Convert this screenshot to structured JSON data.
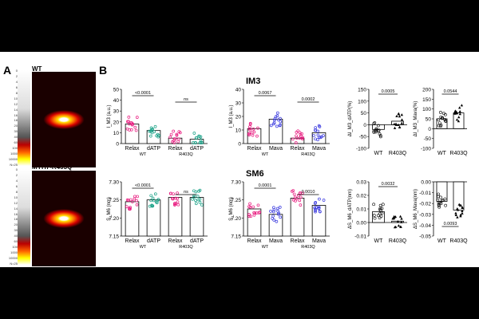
{
  "panel_a": {
    "label": "A",
    "image_top_label": "WT",
    "image_bottom_label": "MYH7-R403Q",
    "lut_ticks": [
      "0",
      "2",
      "4",
      "6",
      "8",
      "10",
      "12",
      "14",
      "16",
      "18",
      "20",
      "30",
      "40",
      "60",
      "100",
      "1000",
      "10000",
      "N=25"
    ]
  },
  "panel_b": {
    "label": "B",
    "row1_title": "IM3",
    "row2_title": "SM6"
  },
  "colors": {
    "wt_relax": "#e8177d",
    "dATP": "#16a085",
    "mava": "#3a3adf",
    "neutral": "#000000"
  },
  "chart_data": [
    {
      "id": "im3_datp",
      "type": "bar",
      "ylabel": "I_M3 (a.u.)",
      "ylim": [
        0,
        50
      ],
      "yticks": [
        0,
        10,
        20,
        30,
        40,
        50
      ],
      "categories": [
        "Relax",
        "dATP",
        "Relax",
        "dATP"
      ],
      "groups": [
        "WT",
        "R403Q"
      ],
      "values": [
        18,
        12,
        5,
        4
      ],
      "p_values": [
        "<0.0001",
        "ns"
      ]
    },
    {
      "id": "im3_mava",
      "type": "bar",
      "ylabel": "I_M3 (a.u.)",
      "ylim": [
        0,
        40
      ],
      "yticks": [
        0,
        10,
        20,
        30,
        40
      ],
      "categories": [
        "Relax",
        "Mava",
        "Relax",
        "Mava"
      ],
      "groups": [
        "WT",
        "R403Q"
      ],
      "values": [
        11,
        18,
        4,
        8
      ],
      "p_values": [
        "0.0067",
        "0.0002"
      ]
    },
    {
      "id": "im3_delta_datp",
      "type": "bar",
      "ylabel": "ΔI_M3_dATP(%)",
      "ylim": [
        -100,
        150
      ],
      "yticks": [
        -100,
        -50,
        0,
        50,
        100,
        150
      ],
      "categories": [
        "WT",
        "R403Q"
      ],
      "values": [
        -20,
        15
      ],
      "p_values": [
        "0.0005"
      ]
    },
    {
      "id": "im3_delta_mava",
      "type": "bar",
      "ylabel": "ΔI_M3_Mava(%)",
      "ylim": [
        -100,
        200
      ],
      "yticks": [
        -100,
        -50,
        0,
        50,
        100,
        150,
        200
      ],
      "categories": [
        "WT",
        "R403Q"
      ],
      "values": [
        50,
        80
      ],
      "p_values": [
        "0.0544"
      ]
    },
    {
      "id": "sm6_datp",
      "type": "bar",
      "ylabel": "S_M6 (nm)",
      "ylim": [
        7.15,
        7.3
      ],
      "yticks": [
        7.15,
        7.2,
        7.25,
        7.3
      ],
      "categories": [
        "Relax",
        "dATP",
        "Relax",
        "dATP"
      ],
      "groups": [
        "WT",
        "R403Q"
      ],
      "values": [
        7.245,
        7.25,
        7.257,
        7.257
      ],
      "p_values": [
        "<0.0001",
        "ns"
      ]
    },
    {
      "id": "sm6_mava",
      "type": "bar",
      "ylabel": "S_M6 (nm)",
      "ylim": [
        7.15,
        7.3
      ],
      "yticks": [
        7.15,
        7.2,
        7.25,
        7.3
      ],
      "categories": [
        "Relax",
        "Mava",
        "Relax",
        "Mava"
      ],
      "groups": [
        "WT",
        "R403Q"
      ],
      "values": [
        7.225,
        7.21,
        7.255,
        7.235
      ],
      "p_values": [
        "0.0001",
        "0.0010"
      ]
    },
    {
      "id": "sm6_delta_datp",
      "type": "bar",
      "ylabel": "ΔS_M6_dATP(nm)",
      "ylim": [
        -0.01,
        0.03
      ],
      "yticks": [
        -0.01,
        0.0,
        0.01,
        0.02,
        0.03
      ],
      "categories": [
        "WT",
        "R403Q"
      ],
      "values": [
        0.008,
        0.001
      ],
      "p_values": [
        "0.0032"
      ]
    },
    {
      "id": "sm6_delta_mava",
      "type": "bar",
      "ylabel": "ΔS_M6_Mava(nm)",
      "ylim": [
        -0.05,
        0.0
      ],
      "yticks": [
        -0.05,
        -0.04,
        -0.03,
        -0.02,
        -0.01,
        0.0
      ],
      "categories": [
        "WT",
        "R403Q"
      ],
      "values": [
        -0.018,
        -0.026
      ],
      "p_values": [
        "0.0093"
      ]
    }
  ]
}
